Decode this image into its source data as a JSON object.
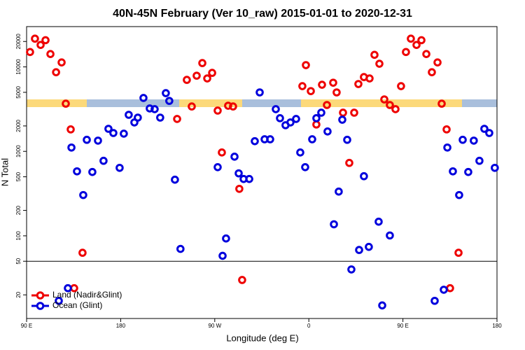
{
  "chart_data": {
    "type": "scatter",
    "title": "40N-45N February (Ver 10_raw)   2015-01-01 to 2020-12-31",
    "x_label": "Longitude (deg E)",
    "y_label": "N Total",
    "xlim": [
      90,
      540
    ],
    "ylim": [
      10.5,
      30000
    ],
    "log_y": true,
    "xticks": [
      {
        "value": 90,
        "label": "90 E"
      },
      180,
      {
        "value": 270,
        "label": "90 W"
      },
      {
        "value": 360,
        "label": "0"
      },
      {
        "value": 450,
        "label": "90 E"
      },
      {
        "value": 540,
        "label": "180"
      }
    ],
    "yticks": [
      20,
      50,
      100,
      200,
      500,
      1000,
      2000,
      5000,
      10000,
      20000
    ],
    "hline": 50,
    "legend": "bottom-left",
    "series": [
      {
        "name": "Land (Nadir&Glint)",
        "color": "#ee0000",
        "x": [
          93.3,
          98.0,
          103.4,
          108.1,
          112.8,
          118.2,
          123.5,
          127.5,
          132.2,
          135.5,
          143.5,
          234.0,
          243.3,
          248.0,
          252.7,
          258.1,
          262.8,
          267.5,
          272.8,
          276.8,
          282.8,
          287.5,
          293.5,
          296.2,
          353.8,
          357.2,
          361.9,
          367.2,
          372.6,
          377.3,
          383.3,
          386.6,
          392.7,
          398.7,
          403.4,
          407.4,
          412.7,
          418.1,
          422.8,
          427.5,
          432.2,
          437.5,
          442.9,
          448.2,
          452.9,
          457.6,
          463.0,
          467.7,
          472.4,
          477.7,
          483.1,
          487.1,
          491.8,
          495.1,
          503.2
        ],
        "values": [
          15000,
          21600,
          18200,
          20700,
          14200,
          8650,
          11300,
          3670,
          1820,
          24,
          63,
          2420,
          7020,
          3400,
          7870,
          11100,
          7300,
          8500,
          3040,
          970,
          3470,
          3400,
          360,
          30,
          5920,
          10500,
          5170,
          2080,
          6150,
          3540,
          6500,
          4990,
          2870,
          730,
          2870,
          6270,
          7580,
          7300,
          13900,
          10900,
          4120,
          3540,
          3160,
          5920,
          15000,
          21600,
          18200,
          20700,
          14200,
          8650,
          11300,
          3670,
          1820,
          24,
          63
        ]
      },
      {
        "name": "Ocean (Glint)",
        "color": "#0000dd",
        "x": [
          120.8,
          129.5,
          132.9,
          138.2,
          144.2,
          147.6,
          152.9,
          158.3,
          163.6,
          168.3,
          173.0,
          179.0,
          183.0,
          187.7,
          193.1,
          196.4,
          201.8,
          207.8,
          212.5,
          217.8,
          223.2,
          226.5,
          231.9,
          237.2,
          272.8,
          277.5,
          280.8,
          288.9,
          292.9,
          297.6,
          303.0,
          308.3,
          313.0,
          317.7,
          323.0,
          328.4,
          332.4,
          337.7,
          342.4,
          347.8,
          351.8,
          356.5,
          363.2,
          367.2,
          371.9,
          377.9,
          384.0,
          388.6,
          392.0,
          396.7,
          400.7,
          408.1,
          412.7,
          417.4,
          426.8,
          430.2,
          437.5,
          480.4,
          489.1,
          492.5,
          497.8,
          503.8,
          507.2,
          512.5,
          517.8,
          523.2,
          527.9,
          532.6,
          537.9
        ],
        "values": [
          17,
          24,
          1110,
          580,
          304,
          1370,
          570,
          1340,
          773,
          1850,
          1650,
          638,
          1620,
          2710,
          2200,
          2510,
          4290,
          3220,
          3160,
          2510,
          4890,
          3960,
          462,
          70,
          650,
          58,
          93,
          865,
          549,
          471,
          471,
          1320,
          4990,
          1390,
          1390,
          3160,
          2470,
          2040,
          2200,
          2420,
          970,
          650,
          1390,
          2470,
          2870,
          1720,
          137,
          334,
          2370,
          1370,
          40,
          68,
          508,
          74,
          147,
          15,
          101,
          17,
          23,
          1110,
          580,
          304,
          1370,
          570,
          1340,
          773,
          1850,
          1650,
          638
        ]
      }
    ]
  }
}
